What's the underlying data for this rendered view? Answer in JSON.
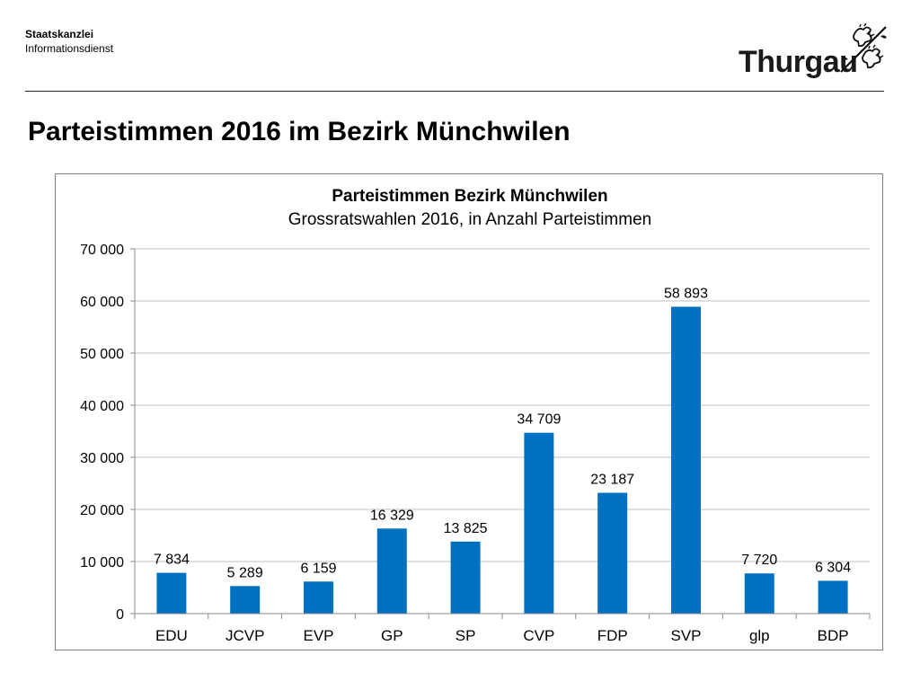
{
  "header": {
    "org_line1": "Staatskanzlei",
    "org_line2": "Informationsdienst",
    "logo_text": "Thurgau",
    "logo_icon": "thurgau-lions-crest"
  },
  "page": {
    "title": "Parteistimmen 2016 im Bezirk Münchwilen"
  },
  "chart_data": {
    "type": "bar",
    "title": "Parteistimmen Bezirk Münchwilen",
    "subtitle": "Grossratswahlen 2016, in Anzahl Parteistimmen",
    "xlabel": "",
    "ylabel": "",
    "categories": [
      "EDU",
      "JCVP",
      "EVP",
      "GP",
      "SP",
      "CVP",
      "FDP",
      "SVP",
      "glp",
      "BDP"
    ],
    "values": [
      7834,
      5289,
      6159,
      16329,
      13825,
      34709,
      23187,
      58893,
      7720,
      6304
    ],
    "value_labels": [
      "7 834",
      "5 289",
      "6 159",
      "16 329",
      "13 825",
      "34 709",
      "23 187",
      "58 893",
      "7 720",
      "6 304"
    ],
    "ylim": [
      0,
      70000
    ],
    "yticks": [
      0,
      10000,
      20000,
      30000,
      40000,
      50000,
      60000,
      70000
    ],
    "ytick_labels": [
      "0",
      "10 000",
      "20 000",
      "30 000",
      "40 000",
      "50 000",
      "60 000",
      "70 000"
    ],
    "grid": true,
    "legend": "none",
    "bar_color": "#0070C0",
    "grid_color": "#bfbfbf"
  }
}
